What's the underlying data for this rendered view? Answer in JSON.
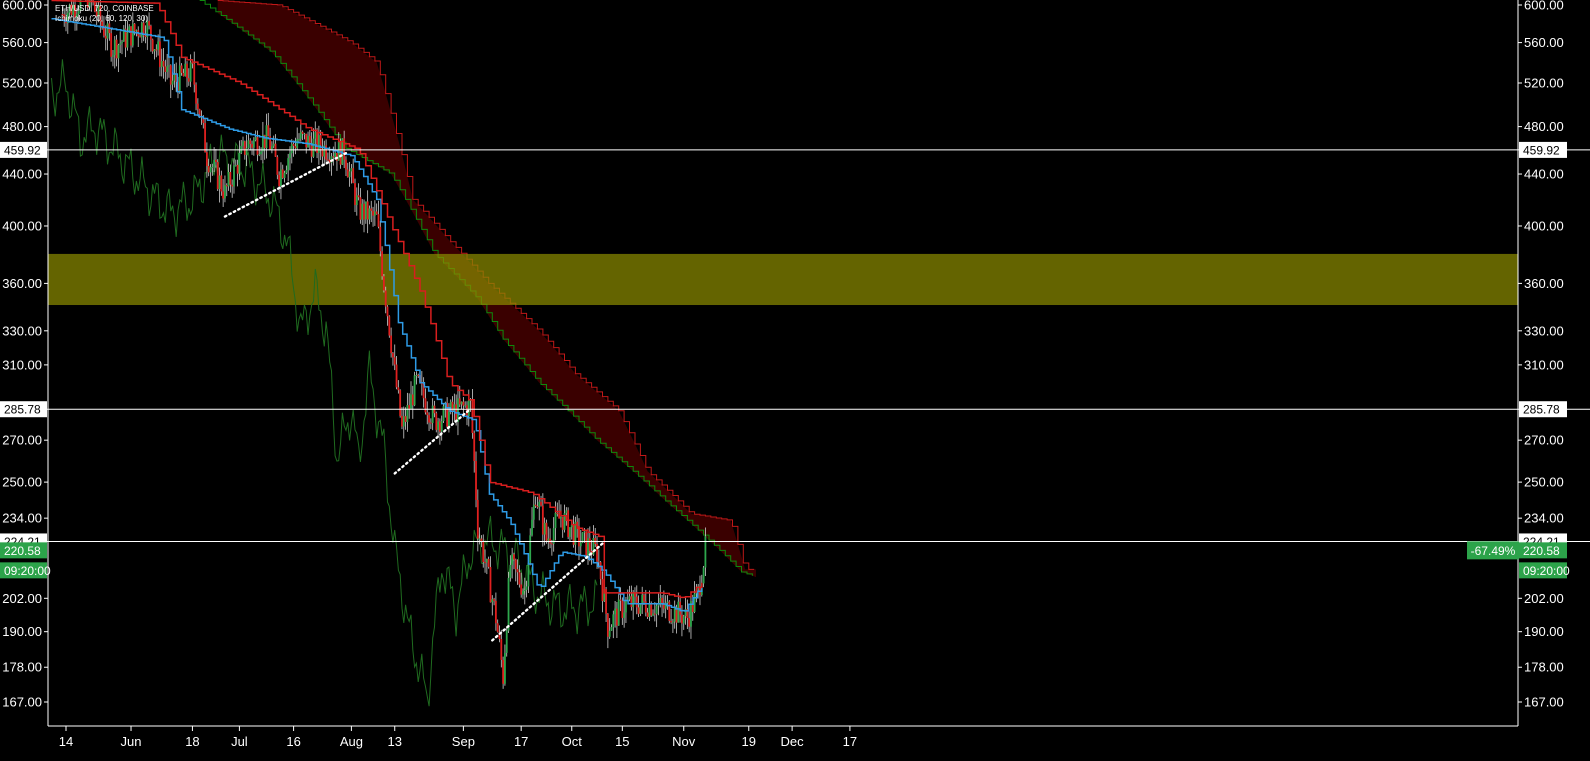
{
  "header": {
    "symbol_line": "ETH/USD, 720, COINBASE",
    "indicator_line": "Ichimoku (20, 60, 120, 30)"
  },
  "chart_data": {
    "type": "candlestick",
    "symbol": "ETH/USD",
    "interval": "720",
    "exchange": "COINBASE",
    "indicator": "Ichimoku (20, 60, 120, 30)",
    "x_tick_labels": [
      "14",
      "Jun",
      "18",
      "Jul",
      "16",
      "Aug",
      "13",
      "Sep",
      "17",
      "Oct",
      "15",
      "Nov",
      "19",
      "Dec",
      "17"
    ],
    "y_tick_labels": [
      "600.00",
      "560.00",
      "520.00",
      "480.00",
      "440.00",
      "400.00",
      "360.00",
      "330.00",
      "310.00",
      "270.00",
      "250.00",
      "234.00",
      "202.00",
      "190.00",
      "178.00",
      "167.00"
    ],
    "ylim": [
      160,
      600
    ],
    "scale": "log",
    "grid": false,
    "horizontal_levels": [
      {
        "value": 459.92,
        "label": "459.92"
      },
      {
        "value": 285.78,
        "label": "285.78"
      },
      {
        "value": 224.21,
        "label": "224.21"
      }
    ],
    "zone": {
      "low": 346,
      "high": 380,
      "color": "#8a8a00"
    },
    "last_price": {
      "value": 220.58,
      "label": "220.58",
      "countdown": "09:20:00",
      "change": "-67.49%"
    },
    "trendlines": [
      {
        "from": [
          "Jun 27",
          407
        ],
        "to": [
          "Jul 31",
          458
        ]
      },
      {
        "from": [
          "Aug 13",
          254
        ],
        "to": [
          "Sep 3",
          286
        ]
      },
      {
        "from": [
          "Sep 9",
          187
        ],
        "to": [
          "Oct 10",
          224
        ]
      }
    ],
    "anchors": [
      [
        "May 13",
        590
      ],
      [
        "May 20",
        610
      ],
      [
        "May 27",
        555
      ],
      [
        "Jun 5",
        580
      ],
      [
        "Jun 12",
        520
      ],
      [
        "Jun 18",
        530
      ],
      [
        "Jun 22",
        455
      ],
      [
        "Jun 27",
        425
      ],
      [
        "Jul 3",
        465
      ],
      [
        "Jul 9",
        470
      ],
      [
        "Jul 12",
        440
      ],
      [
        "Jul 17",
        470
      ],
      [
        "Jul 24",
        462
      ],
      [
        "Jul 30",
        458
      ],
      [
        "Aug 3",
        412
      ],
      [
        "Aug 8",
        405
      ],
      [
        "Aug 10",
        360
      ],
      [
        "Aug 13",
        305
      ],
      [
        "Aug 15",
        275
      ],
      [
        "Aug 19",
        300
      ],
      [
        "Aug 24",
        280
      ],
      [
        "Aug 30",
        285
      ],
      [
        "Sep 3",
        288
      ],
      [
        "Sep 5",
        230
      ],
      [
        "Sep 10",
        195
      ],
      [
        "Sep 12",
        175
      ],
      [
        "Sep 14",
        215
      ],
      [
        "Sep 18",
        205
      ],
      [
        "Sep 21",
        245
      ],
      [
        "Sep 24",
        225
      ],
      [
        "Sep 28",
        235
      ],
      [
        "Oct 3",
        225
      ],
      [
        "Oct 8",
        220
      ],
      [
        "Oct 11",
        192
      ],
      [
        "Oct 16",
        200
      ],
      [
        "Oct 22",
        200
      ],
      [
        "Oct 28",
        198
      ],
      [
        "Nov 2",
        195
      ],
      [
        "Nov 5",
        204
      ],
      [
        "Nov 7",
        221
      ]
    ],
    "ichimoku": {
      "conversion": [
        [
          "May 10",
          585
        ],
        [
          "Jun 10",
          565
        ],
        [
          "Jun 15",
          495
        ],
        [
          "Jun 28",
          478
        ],
        [
          "Jul 8",
          470
        ],
        [
          "Jul 20",
          465
        ],
        [
          "Aug 1",
          455
        ],
        [
          "Aug 8",
          420
        ],
        [
          "Aug 14",
          335
        ],
        [
          "Aug 20",
          300
        ],
        [
          "Aug 28",
          285
        ],
        [
          "Sep 4",
          280
        ],
        [
          "Sep 8",
          245
        ],
        [
          "Sep 14",
          232
        ],
        [
          "Sep 22",
          205
        ],
        [
          "Sep 28",
          220
        ],
        [
          "Oct 5",
          218
        ],
        [
          "Oct 10",
          212
        ],
        [
          "Oct 16",
          200
        ],
        [
          "Oct 26",
          200
        ],
        [
          "Nov 1",
          197
        ],
        [
          "Nov 7",
          209
        ]
      ],
      "base": [
        [
          "May 10",
          605
        ],
        [
          "Jun 8",
          602
        ],
        [
          "Jun 15",
          545
        ],
        [
          "Jul 1",
          520
        ],
        [
          "Jul 20",
          478
        ],
        [
          "Aug 3",
          460
        ],
        [
          "Aug 12",
          400
        ],
        [
          "Aug 20",
          355
        ],
        [
          "Aug 28",
          300
        ],
        [
          "Sep 3",
          290
        ],
        [
          "Sep 8",
          250
        ],
        [
          "Sep 20",
          245
        ],
        [
          "Oct 2",
          230
        ],
        [
          "Oct 9",
          226
        ],
        [
          "Oct 10",
          204
        ],
        [
          "Oct 26",
          204
        ],
        [
          "Nov 1",
          202
        ],
        [
          "Nov 7",
          209
        ]
      ],
      "span_a": [
        [
          "Jun 20",
          605
        ],
        [
          "Jul 10",
          550
        ],
        [
          "Jul 30",
          462
        ],
        [
          "Aug 12",
          440
        ],
        [
          "Aug 24",
          380
        ],
        [
          "Sep 5",
          350
        ],
        [
          "Sep 12",
          325
        ],
        [
          "Sep 22",
          300
        ],
        [
          "Oct 8",
          270
        ],
        [
          "Oct 28",
          240
        ],
        [
          "Nov 10",
          222
        ],
        [
          "Nov 17",
          212
        ],
        [
          "Nov 21",
          210
        ]
      ],
      "span_b": [
        [
          "Jun 25",
          605
        ],
        [
          "Jul 12",
          600
        ],
        [
          "Aug 1",
          560
        ],
        [
          "Aug 8",
          540
        ],
        [
          "Aug 18",
          420
        ],
        [
          "Aug 28",
          390
        ],
        [
          "Sep 8",
          360
        ],
        [
          "Sep 22",
          330
        ],
        [
          "Oct 2",
          305
        ],
        [
          "Oct 14",
          285
        ],
        [
          "Oct 22",
          255
        ],
        [
          "Nov 3",
          236
        ],
        [
          "Nov 14",
          233
        ],
        [
          "Nov 18",
          213
        ],
        [
          "Nov 21",
          213
        ]
      ],
      "lagging": [
        [
          "May 10",
          510
        ],
        [
          "May 14",
          520
        ],
        [
          "May 18",
          470
        ],
        [
          "May 22",
          480
        ],
        [
          "Jun 2",
          440
        ],
        [
          "Jun 8",
          420
        ],
        [
          "Jun 12",
          410
        ],
        [
          "Jun 18",
          420
        ],
        [
          "Jun 25",
          455
        ],
        [
          "Jul 3",
          445
        ],
        [
          "Jul 10",
          420
        ],
        [
          "Jul 14",
          390
        ],
        [
          "Jul 18",
          330
        ],
        [
          "Jul 22",
          355
        ],
        [
          "Jul 25",
          330
        ],
        [
          "Jul 28",
          262
        ],
        [
          "Aug 1",
          285
        ],
        [
          "Aug 3",
          260
        ],
        [
          "Aug 6",
          305
        ],
        [
          "Aug 10",
          265
        ],
        [
          "Aug 13",
          220
        ],
        [
          "Aug 17",
          190
        ],
        [
          "Aug 22",
          168
        ],
        [
          "Aug 26",
          215
        ],
        [
          "Aug 30",
          198
        ],
        [
          "Sep 3",
          220
        ],
        [
          "Sep 8",
          225
        ],
        [
          "Sep 15",
          218
        ],
        [
          "Sep 22",
          203
        ],
        [
          "Sep 28",
          198
        ],
        [
          "Oct 4",
          199
        ],
        [
          "Oct 8",
          201
        ]
      ]
    }
  },
  "colors": {
    "bg": "#000000",
    "up": "#2ea84d",
    "down": "#e0201f",
    "conversion": "#2e9be6",
    "base": "#d81e1e",
    "span_a": "#0d8a0d",
    "span_b": "#c01818",
    "cloud_bear": "#3d0000",
    "cloud_bull": "#062406",
    "lagging": "#1f6a1f",
    "tag_bg": "#2ca34a",
    "level_line": "#ffffff"
  }
}
